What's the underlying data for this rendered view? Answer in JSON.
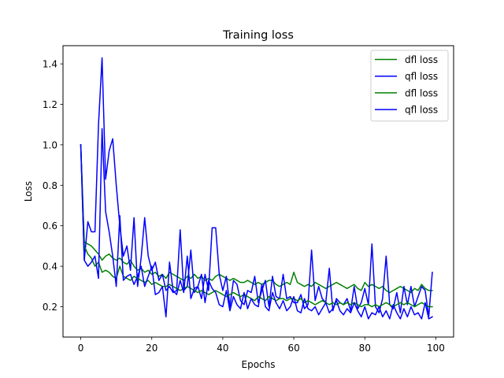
{
  "chart_data": {
    "type": "line",
    "title": "Training loss",
    "xlabel": "Epochs",
    "ylabel": "Loss",
    "xlim": [
      -5,
      105
    ],
    "ylim": [
      0.05,
      1.49
    ],
    "xticks": [
      0,
      20,
      40,
      60,
      80,
      100
    ],
    "yticks": [
      0.2,
      0.4,
      0.6,
      0.8,
      1.0,
      1.2,
      1.4
    ],
    "xtick_labels": [
      "0",
      "20",
      "40",
      "60",
      "80",
      "100"
    ],
    "ytick_labels": [
      "0.2",
      "0.4",
      "0.6",
      "0.8",
      "1.0",
      "1.2",
      "1.4"
    ],
    "grid": false,
    "legend_position": "top-right",
    "colors": {
      "dfl": "#008000",
      "qfl": "#0000ff"
    },
    "series": [
      {
        "name": "dfl loss",
        "color": "#008000",
        "x": [
          0,
          1,
          2,
          3,
          4,
          5,
          6,
          7,
          8,
          9,
          10,
          11,
          12,
          13,
          14,
          15,
          16,
          17,
          18,
          19,
          20,
          21,
          22,
          23,
          24,
          25,
          26,
          27,
          28,
          29,
          30,
          31,
          32,
          33,
          34,
          35,
          36,
          37,
          38,
          39,
          40,
          41,
          42,
          43,
          44,
          45,
          46,
          47,
          48,
          49,
          50,
          51,
          52,
          53,
          54,
          55,
          56,
          57,
          58,
          59,
          60,
          61,
          62,
          63,
          64,
          65,
          66,
          67,
          68,
          69,
          70,
          71,
          72,
          73,
          74,
          75,
          76,
          77,
          78,
          79,
          80,
          81,
          82,
          83,
          84,
          85,
          86,
          87,
          88,
          89,
          90,
          91,
          92,
          93,
          94,
          95,
          96,
          97,
          98,
          99
        ],
        "values": [
          1.0,
          0.52,
          0.51,
          0.5,
          0.48,
          0.46,
          0.43,
          0.45,
          0.46,
          0.44,
          0.43,
          0.44,
          0.42,
          0.41,
          0.43,
          0.4,
          0.38,
          0.39,
          0.37,
          0.38,
          0.36,
          0.37,
          0.35,
          0.36,
          0.34,
          0.37,
          0.36,
          0.35,
          0.34,
          0.33,
          0.35,
          0.34,
          0.36,
          0.34,
          0.35,
          0.33,
          0.34,
          0.33,
          0.35,
          0.36,
          0.35,
          0.34,
          0.33,
          0.34,
          0.33,
          0.32,
          0.32,
          0.33,
          0.32,
          0.31,
          0.32,
          0.31,
          0.32,
          0.33,
          0.33,
          0.31,
          0.3,
          0.31,
          0.32,
          0.31,
          0.37,
          0.32,
          0.31,
          0.3,
          0.31,
          0.3,
          0.32,
          0.31,
          0.3,
          0.29,
          0.3,
          0.31,
          0.32,
          0.31,
          0.3,
          0.29,
          0.3,
          0.31,
          0.29,
          0.28,
          0.32,
          0.3,
          0.31,
          0.3,
          0.29,
          0.3,
          0.28,
          0.27,
          0.28,
          0.29,
          0.3,
          0.29,
          0.28,
          0.27,
          0.29,
          0.28,
          0.31,
          0.29,
          0.28,
          0.28
        ]
      },
      {
        "name": "qfl loss",
        "color": "#0000ff",
        "x": [
          0,
          1,
          2,
          3,
          4,
          5,
          6,
          7,
          8,
          9,
          10,
          11,
          12,
          13,
          14,
          15,
          16,
          17,
          18,
          19,
          20,
          21,
          22,
          23,
          24,
          25,
          26,
          27,
          28,
          29,
          30,
          31,
          32,
          33,
          34,
          35,
          36,
          37,
          38,
          39,
          40,
          41,
          42,
          43,
          44,
          45,
          46,
          47,
          48,
          49,
          50,
          51,
          52,
          53,
          54,
          55,
          56,
          57,
          58,
          59,
          60,
          61,
          62,
          63,
          64,
          65,
          66,
          67,
          68,
          69,
          70,
          71,
          72,
          73,
          74,
          75,
          76,
          77,
          78,
          79,
          80,
          81,
          82,
          83,
          84,
          85,
          86,
          87,
          88,
          89,
          90,
          91,
          92,
          93,
          94,
          95,
          96,
          97,
          98,
          99
        ],
        "values": [
          1.0,
          0.43,
          0.62,
          0.57,
          0.57,
          1.1,
          1.43,
          0.83,
          0.97,
          1.03,
          0.8,
          0.6,
          0.45,
          0.5,
          0.38,
          0.64,
          0.3,
          0.44,
          0.64,
          0.45,
          0.38,
          0.42,
          0.33,
          0.36,
          0.28,
          0.3,
          0.27,
          0.28,
          0.58,
          0.28,
          0.3,
          0.48,
          0.27,
          0.3,
          0.24,
          0.36,
          0.28,
          0.59,
          0.59,
          0.36,
          0.28,
          0.35,
          0.2,
          0.33,
          0.31,
          0.23,
          0.21,
          0.28,
          0.27,
          0.35,
          0.22,
          0.28,
          0.33,
          0.2,
          0.35,
          0.25,
          0.24,
          0.36,
          0.24,
          0.25,
          0.22,
          0.22,
          0.26,
          0.19,
          0.21,
          0.48,
          0.23,
          0.3,
          0.24,
          0.22,
          0.39,
          0.18,
          0.24,
          0.22,
          0.21,
          0.24,
          0.18,
          0.3,
          0.19,
          0.22,
          0.29,
          0.21,
          0.51,
          0.2,
          0.17,
          0.24,
          0.45,
          0.21,
          0.19,
          0.27,
          0.17,
          0.3,
          0.21,
          0.3,
          0.2,
          0.25,
          0.3,
          0.28,
          0.15,
          0.37
        ]
      },
      {
        "name": "dfl loss",
        "color": "#008000",
        "x": [
          0,
          1,
          2,
          3,
          4,
          5,
          6,
          7,
          8,
          9,
          10,
          11,
          12,
          13,
          14,
          15,
          16,
          17,
          18,
          19,
          20,
          21,
          22,
          23,
          24,
          25,
          26,
          27,
          28,
          29,
          30,
          31,
          32,
          33,
          34,
          35,
          36,
          37,
          38,
          39,
          40,
          41,
          42,
          43,
          44,
          45,
          46,
          47,
          48,
          49,
          50,
          51,
          52,
          53,
          54,
          55,
          56,
          57,
          58,
          59,
          60,
          61,
          62,
          63,
          64,
          65,
          66,
          67,
          68,
          69,
          70,
          71,
          72,
          73,
          74,
          75,
          76,
          77,
          78,
          79,
          80,
          81,
          82,
          83,
          84,
          85,
          86,
          87,
          88,
          89,
          90,
          91,
          92,
          93,
          94,
          95,
          96,
          97,
          98,
          99
        ],
        "values": [
          1.0,
          0.5,
          0.46,
          0.44,
          0.4,
          0.42,
          0.37,
          0.38,
          0.37,
          0.35,
          0.34,
          0.4,
          0.35,
          0.34,
          0.33,
          0.35,
          0.34,
          0.33,
          0.32,
          0.33,
          0.31,
          0.32,
          0.31,
          0.3,
          0.3,
          0.31,
          0.3,
          0.29,
          0.28,
          0.29,
          0.3,
          0.29,
          0.28,
          0.27,
          0.28,
          0.27,
          0.26,
          0.27,
          0.28,
          0.27,
          0.26,
          0.25,
          0.26,
          0.27,
          0.26,
          0.25,
          0.26,
          0.25,
          0.24,
          0.23,
          0.25,
          0.24,
          0.23,
          0.25,
          0.24,
          0.23,
          0.24,
          0.24,
          0.23,
          0.24,
          0.24,
          0.23,
          0.24,
          0.22,
          0.23,
          0.22,
          0.21,
          0.22,
          0.23,
          0.22,
          0.21,
          0.22,
          0.21,
          0.22,
          0.21,
          0.22,
          0.21,
          0.22,
          0.21,
          0.2,
          0.21,
          0.21,
          0.2,
          0.21,
          0.2,
          0.21,
          0.22,
          0.21,
          0.2,
          0.21,
          0.22,
          0.21,
          0.22,
          0.21,
          0.2,
          0.21,
          0.22,
          0.21,
          0.2,
          0.2
        ]
      },
      {
        "name": "qfl loss",
        "color": "#0000ff",
        "x": [
          0,
          1,
          2,
          3,
          4,
          5,
          6,
          7,
          8,
          9,
          10,
          11,
          12,
          13,
          14,
          15,
          16,
          17,
          18,
          19,
          20,
          21,
          22,
          23,
          24,
          25,
          26,
          27,
          28,
          29,
          30,
          31,
          32,
          33,
          34,
          35,
          36,
          37,
          38,
          39,
          40,
          41,
          42,
          43,
          44,
          45,
          46,
          47,
          48,
          49,
          50,
          51,
          52,
          53,
          54,
          55,
          56,
          57,
          58,
          59,
          60,
          61,
          62,
          63,
          64,
          65,
          66,
          67,
          68,
          69,
          70,
          71,
          72,
          73,
          74,
          75,
          76,
          77,
          78,
          79,
          80,
          81,
          82,
          83,
          84,
          85,
          86,
          87,
          88,
          89,
          90,
          91,
          92,
          93,
          94,
          95,
          96,
          97,
          98,
          99
        ],
        "values": [
          1.0,
          0.43,
          0.4,
          0.42,
          0.45,
          0.34,
          1.08,
          0.67,
          0.57,
          0.45,
          0.3,
          0.65,
          0.33,
          0.35,
          0.36,
          0.31,
          0.35,
          0.4,
          0.3,
          0.35,
          0.4,
          0.26,
          0.27,
          0.3,
          0.15,
          0.42,
          0.28,
          0.26,
          0.33,
          0.27,
          0.45,
          0.24,
          0.29,
          0.3,
          0.36,
          0.22,
          0.33,
          0.29,
          0.27,
          0.21,
          0.2,
          0.28,
          0.18,
          0.25,
          0.21,
          0.19,
          0.27,
          0.19,
          0.24,
          0.21,
          0.2,
          0.31,
          0.2,
          0.18,
          0.27,
          0.22,
          0.19,
          0.23,
          0.18,
          0.2,
          0.25,
          0.18,
          0.17,
          0.24,
          0.19,
          0.18,
          0.2,
          0.16,
          0.19,
          0.22,
          0.17,
          0.19,
          0.23,
          0.18,
          0.16,
          0.19,
          0.17,
          0.22,
          0.18,
          0.15,
          0.2,
          0.14,
          0.17,
          0.16,
          0.2,
          0.15,
          0.18,
          0.14,
          0.21,
          0.17,
          0.14,
          0.19,
          0.15,
          0.2,
          0.16,
          0.17,
          0.14,
          0.22,
          0.14,
          0.15
        ]
      }
    ]
  }
}
